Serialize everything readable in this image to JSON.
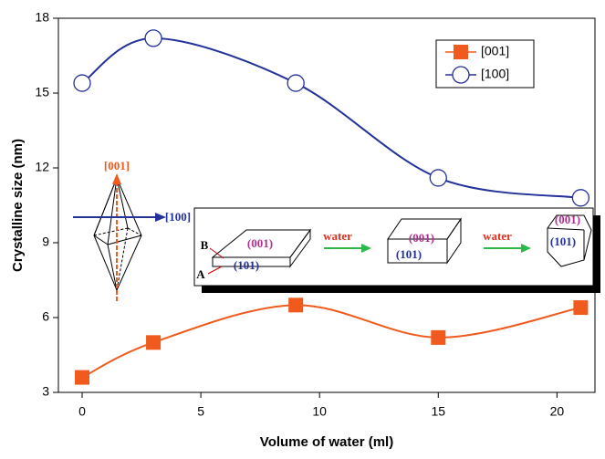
{
  "chart_data": {
    "type": "line",
    "xlabel": "Volume of water (ml)",
    "ylabel": "Crystalline size (nm)",
    "xlim": [
      -1,
      21.6
    ],
    "ylim": [
      3,
      18
    ],
    "xticks": [
      0,
      5,
      10,
      15,
      20
    ],
    "yticks": [
      3,
      6,
      9,
      12,
      15,
      18
    ],
    "x": [
      0,
      3,
      9,
      15,
      21
    ],
    "series": [
      {
        "name": "[001]",
        "color": "#f05a1e",
        "marker": "square",
        "values": [
          3.6,
          5.0,
          6.5,
          5.2,
          6.4
        ]
      },
      {
        "name": "[100]",
        "color": "#23319a",
        "marker": "circle",
        "values": [
          15.4,
          17.2,
          15.4,
          11.6,
          10.8
        ]
      }
    ],
    "legend": "upper right",
    "annotations": [
      "[001]",
      "[100]",
      "B",
      "A",
      "(001)",
      "(101)",
      "water",
      "(001)",
      "(101)",
      "water",
      "(001)",
      "(101)"
    ]
  }
}
